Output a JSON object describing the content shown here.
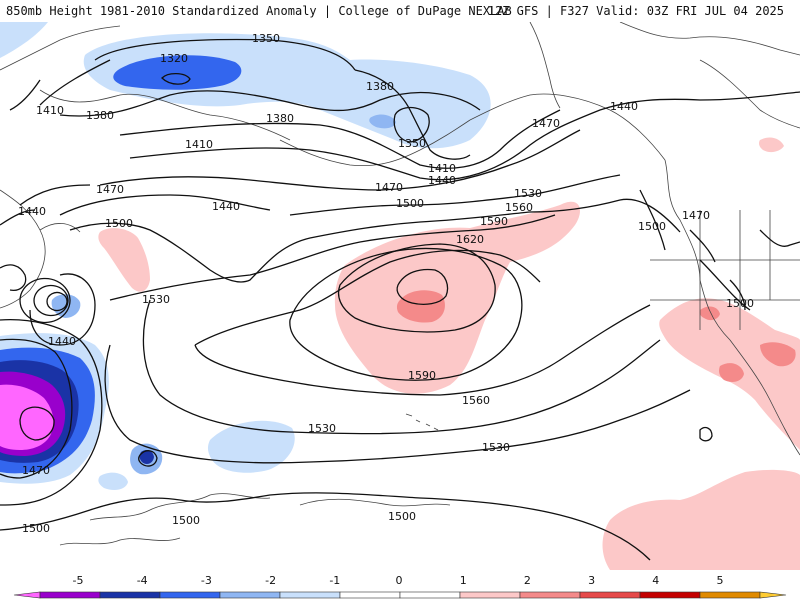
{
  "header": {
    "left": "850mb Height 1981-2010 Standardized Anomaly | College of DuPage NEXLAB",
    "right": "12Z GFS | F327 Valid: 03Z FRI JUL 04 2025"
  },
  "contours": [
    {
      "value": "1350",
      "id": "c1350-top"
    },
    {
      "value": "1320",
      "id": "c1320"
    },
    {
      "value": "1380",
      "id": "c1380-w"
    },
    {
      "value": "1410",
      "id": "c1410-w"
    },
    {
      "value": "1380",
      "id": "c1380-c"
    },
    {
      "value": "1380",
      "id": "c1380-e"
    },
    {
      "value": "1350",
      "id": "c1350-e"
    },
    {
      "value": "1410",
      "id": "c1410-c"
    },
    {
      "value": "1410",
      "id": "c1410-e"
    },
    {
      "value": "1440",
      "id": "c1440-e"
    },
    {
      "value": "1440",
      "id": "c1440-ne"
    },
    {
      "value": "1470",
      "id": "c1470-ne"
    },
    {
      "value": "1470",
      "id": "c1470-w"
    },
    {
      "value": "1470",
      "id": "c1470-c"
    },
    {
      "value": "1440",
      "id": "c1440-w"
    },
    {
      "value": "1440",
      "id": "c1440-c"
    },
    {
      "value": "1500",
      "id": "c1500-w"
    },
    {
      "value": "1500",
      "id": "c1500-c"
    },
    {
      "value": "1530",
      "id": "c1530-e"
    },
    {
      "value": "1560",
      "id": "c1560-e"
    },
    {
      "value": "1590",
      "id": "c1590-e"
    },
    {
      "value": "1620",
      "id": "c1620"
    },
    {
      "value": "1530",
      "id": "c1530-w"
    },
    {
      "value": "1590",
      "id": "c1590-s"
    },
    {
      "value": "1560",
      "id": "c1560-s"
    },
    {
      "value": "1530",
      "id": "c1530-s"
    },
    {
      "value": "1530",
      "id": "c1530-ss"
    },
    {
      "value": "1440",
      "id": "c1440-sw"
    },
    {
      "value": "1470",
      "id": "c1470-sw"
    },
    {
      "value": "1500",
      "id": "c1500-sw"
    },
    {
      "value": "1500",
      "id": "c1500-s1"
    },
    {
      "value": "1500",
      "id": "c1500-s2"
    },
    {
      "value": "1470",
      "id": "c1470-na"
    },
    {
      "value": "1500",
      "id": "c1500-na"
    },
    {
      "value": "1500",
      "id": "c1500-ca"
    }
  ],
  "colorbar": {
    "ticks": [
      "-5",
      "-4",
      "-3",
      "-2",
      "-1",
      "0",
      "1",
      "2",
      "3",
      "4",
      "5"
    ],
    "colors": [
      "#ff66ff",
      "#9900cc",
      "#1a33a6",
      "#3366ee",
      "#8fb6f2",
      "#c9e0fb",
      "#ffffff",
      "#ffffff",
      "#fcc8c8",
      "#f48a8a",
      "#e64a4a",
      "#c40000",
      "#e08a00",
      "#ffcc33"
    ]
  },
  "anomaly_colors": {
    "neg1": "#c9e0fb",
    "neg2": "#3366ee",
    "neg3": "#1a33a6",
    "neg4": "#9900cc",
    "neg5": "#ff66ff",
    "pos1": "#fcc8c8",
    "pos2": "#f48a8a"
  }
}
